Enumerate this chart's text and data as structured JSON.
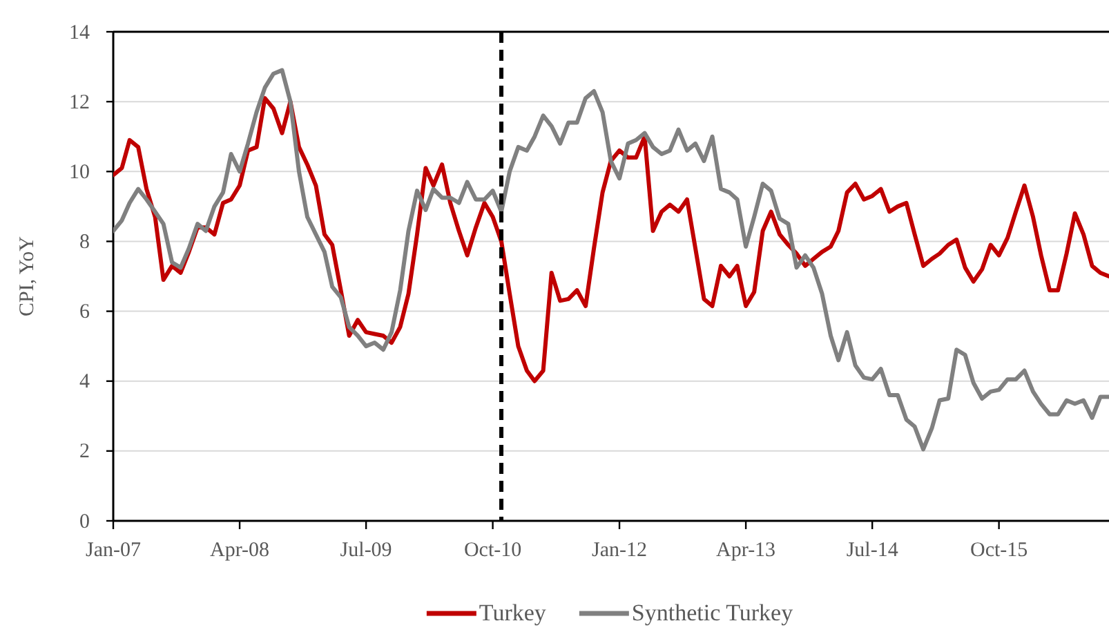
{
  "chart_data": {
    "type": "line",
    "ylabel": "CPI, YoY",
    "x": [
      "2007-01",
      "2007-02",
      "2007-03",
      "2007-04",
      "2007-05",
      "2007-06",
      "2007-07",
      "2007-08",
      "2007-09",
      "2007-10",
      "2007-11",
      "2007-12",
      "2008-01",
      "2008-02",
      "2008-03",
      "2008-04",
      "2008-05",
      "2008-06",
      "2008-07",
      "2008-08",
      "2008-09",
      "2008-10",
      "2008-11",
      "2008-12",
      "2009-01",
      "2009-02",
      "2009-03",
      "2009-04",
      "2009-05",
      "2009-06",
      "2009-07",
      "2009-08",
      "2009-09",
      "2009-10",
      "2009-11",
      "2009-12",
      "2010-01",
      "2010-02",
      "2010-03",
      "2010-04",
      "2010-05",
      "2010-06",
      "2010-07",
      "2010-08",
      "2010-09",
      "2010-10",
      "2010-11",
      "2010-12",
      "2011-01",
      "2011-02",
      "2011-03",
      "2011-04",
      "2011-05",
      "2011-06",
      "2011-07",
      "2011-08",
      "2011-09",
      "2011-10",
      "2011-11",
      "2011-12",
      "2012-01",
      "2012-02",
      "2012-03",
      "2012-04",
      "2012-05",
      "2012-06",
      "2012-07",
      "2012-08",
      "2012-09",
      "2012-10",
      "2012-11",
      "2012-12",
      "2013-01",
      "2013-02",
      "2013-03",
      "2013-04",
      "2013-05",
      "2013-06",
      "2013-07",
      "2013-08",
      "2013-09",
      "2013-10",
      "2013-11",
      "2013-12",
      "2014-01",
      "2014-02",
      "2014-03",
      "2014-04",
      "2014-05",
      "2014-06",
      "2014-07",
      "2014-08",
      "2014-09",
      "2014-10",
      "2014-11",
      "2014-12",
      "2015-01",
      "2015-02",
      "2015-03",
      "2015-04",
      "2015-05",
      "2015-06",
      "2015-07",
      "2015-08",
      "2015-09",
      "2015-10",
      "2015-11",
      "2015-12",
      "2016-01",
      "2016-02",
      "2016-03",
      "2016-04",
      "2016-05",
      "2016-06",
      "2016-07",
      "2016-08",
      "2016-09",
      "2016-10",
      "2016-11"
    ],
    "series": [
      {
        "name": "Turkey",
        "color": "#c00000",
        "values": [
          9.9,
          10.1,
          10.9,
          10.7,
          9.5,
          8.7,
          6.9,
          7.3,
          7.1,
          7.7,
          8.4,
          8.4,
          8.2,
          9.1,
          9.2,
          9.6,
          10.6,
          10.7,
          12.1,
          11.8,
          11.1,
          12.0,
          10.7,
          10.2,
          9.6,
          8.2,
          7.9,
          6.6,
          5.3,
          5.75,
          5.4,
          5.35,
          5.3,
          5.1,
          5.55,
          6.5,
          8.2,
          10.1,
          9.6,
          10.2,
          9.1,
          8.3,
          7.6,
          8.4,
          9.1,
          8.7,
          8.0,
          6.5,
          5.0,
          4.3,
          4.0,
          4.3,
          7.1,
          6.3,
          6.35,
          6.6,
          6.15,
          7.8,
          9.4,
          10.3,
          10.6,
          10.4,
          10.4,
          11.0,
          8.3,
          8.85,
          9.05,
          8.85,
          9.2,
          7.8,
          6.35,
          6.15,
          7.3,
          7.0,
          7.3,
          6.15,
          6.55,
          8.3,
          8.85,
          8.2,
          7.9,
          7.65,
          7.3,
          7.5,
          7.7,
          7.85,
          8.3,
          9.4,
          9.65,
          9.2,
          9.3,
          9.5,
          8.85,
          9.0,
          9.1,
          8.2,
          7.3,
          7.5,
          7.65,
          7.9,
          8.05,
          7.25,
          6.85,
          7.2,
          7.9,
          7.6,
          8.1,
          8.85,
          9.6,
          8.7,
          7.6,
          6.6,
          6.6,
          7.65,
          8.8,
          8.2,
          7.3,
          7.1,
          7.0
        ]
      },
      {
        "name": "Synthetic Turkey",
        "color": "#808080",
        "values": [
          8.3,
          8.6,
          9.1,
          9.5,
          9.2,
          8.85,
          8.5,
          7.4,
          7.25,
          7.8,
          8.5,
          8.3,
          9.0,
          9.4,
          10.5,
          10.0,
          10.8,
          11.7,
          12.4,
          12.8,
          12.9,
          12.0,
          10.0,
          8.7,
          8.2,
          7.7,
          6.7,
          6.4,
          5.55,
          5.3,
          5.0,
          5.1,
          4.9,
          5.4,
          6.6,
          8.3,
          9.45,
          8.9,
          9.5,
          9.25,
          9.25,
          9.1,
          9.7,
          9.2,
          9.2,
          9.45,
          8.85,
          10.0,
          10.7,
          10.6,
          11.0,
          11.6,
          11.3,
          10.8,
          11.4,
          11.4,
          12.1,
          12.3,
          11.7,
          10.3,
          9.8,
          10.8,
          10.9,
          11.1,
          10.7,
          10.5,
          10.6,
          11.2,
          10.6,
          10.8,
          10.3,
          11.0,
          9.5,
          9.4,
          9.2,
          7.85,
          8.7,
          9.65,
          9.45,
          8.65,
          8.5,
          7.25,
          7.6,
          7.25,
          6.5,
          5.3,
          4.6,
          5.4,
          4.45,
          4.1,
          4.05,
          4.35,
          3.6,
          3.6,
          2.9,
          2.7,
          2.05,
          2.65,
          3.45,
          3.5,
          4.9,
          4.75,
          3.95,
          3.5,
          3.7,
          3.75,
          4.05,
          4.05,
          4.3,
          3.7,
          3.35,
          3.05,
          3.05,
          3.45,
          3.35,
          3.45,
          2.95,
          3.55,
          3.55
        ]
      }
    ],
    "xlim": [
      "2007-01",
      "2016-11"
    ],
    "xticks": [
      {
        "value": "2007-01",
        "label": "Jan-07"
      },
      {
        "value": "2008-04",
        "label": "Apr-08"
      },
      {
        "value": "2009-07",
        "label": "Jul-09"
      },
      {
        "value": "2010-10",
        "label": "Oct-10"
      },
      {
        "value": "2012-01",
        "label": "Jan-12"
      },
      {
        "value": "2013-04",
        "label": "Apr-13"
      },
      {
        "value": "2014-07",
        "label": "Jul-14"
      },
      {
        "value": "2015-10",
        "label": "Oct-15"
      }
    ],
    "ylim": [
      0,
      14
    ],
    "yticks": [
      0,
      2,
      4,
      6,
      8,
      10,
      12,
      14
    ],
    "grid": "y",
    "legend": "bottom",
    "line_style": "solid",
    "ref_lines": [
      {
        "axis": "x",
        "value": "2010-11",
        "color": "#000000",
        "line_style": "dashed"
      }
    ]
  }
}
